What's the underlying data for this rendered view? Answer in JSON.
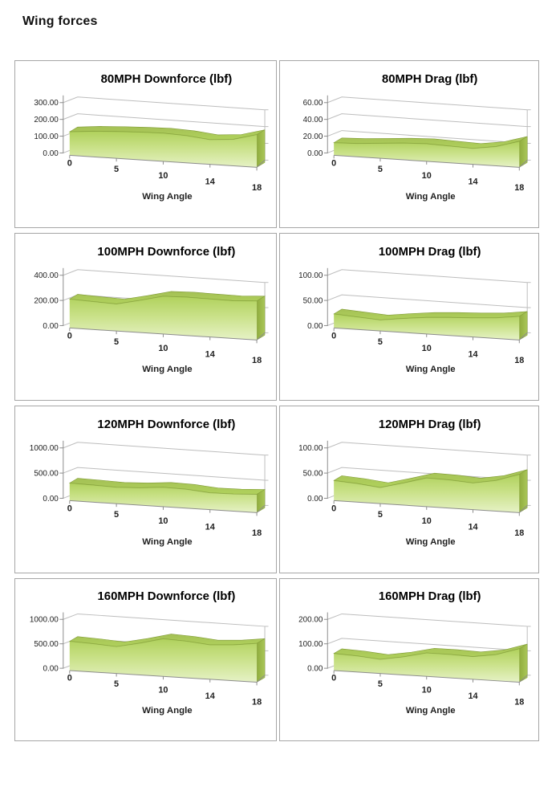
{
  "page": {
    "title": "Wing forces"
  },
  "colors": {
    "area_grad_top": "#b0d15c",
    "area_grad_mid": "#c9e188",
    "area_grad_bottom": "#e6f2c6",
    "ribbon": "#a4c055",
    "ribbon_edge": "#7f9a36",
    "side_front": "#90ac3e",
    "side_back": "#aac759",
    "gridline": "#bdbdbd",
    "axis": "#8c8c8c",
    "box_border": "#a6a6a6",
    "tick_text": "#1f1f1f",
    "title_text": "#000000"
  },
  "chart_data": [
    {
      "type": "area",
      "title": "80MPH Downforce (lbf)",
      "xlabel": "Wing Angle",
      "x": [
        0,
        2,
        5,
        7,
        10,
        12,
        14,
        16,
        18
      ],
      "x_tick_labels": [
        "0",
        "5",
        "10",
        "14",
        "18"
      ],
      "values": [
        140,
        153,
        160,
        165,
        168,
        162,
        147,
        158,
        195
      ],
      "ylim": [
        0,
        300
      ],
      "y_ticks": [
        "0.00",
        "100.00",
        "200.00",
        "300.00"
      ]
    },
    {
      "type": "area",
      "title": "80MPH Drag (lbf)",
      "xlabel": "Wing Angle",
      "x": [
        0,
        2,
        5,
        7,
        10,
        12,
        14,
        16,
        18
      ],
      "x_tick_labels": [
        "0",
        "5",
        "10",
        "14",
        "18"
      ],
      "values": [
        15,
        16,
        18,
        20,
        21,
        20,
        19,
        23,
        31
      ],
      "ylim": [
        0,
        60
      ],
      "y_ticks": [
        "0.00",
        "20.00",
        "40.00",
        "60.00"
      ]
    },
    {
      "type": "area",
      "title": "100MPH Downforce (lbf)",
      "xlabel": "Wing Angle",
      "x": [
        0,
        2,
        5,
        7,
        10,
        12,
        14,
        16,
        18
      ],
      "x_tick_labels": [
        "0",
        "5",
        "10",
        "14",
        "18"
      ],
      "values": [
        230,
        222,
        215,
        255,
        300,
        305,
        302,
        300,
        310
      ],
      "ylim": [
        0,
        400
      ],
      "y_ticks": [
        "0.00",
        "200.00",
        "400.00"
      ]
    },
    {
      "type": "area",
      "title": "100MPH Drag (lbf)",
      "xlabel": "Wing Angle",
      "x": [
        0,
        2,
        5,
        7,
        10,
        12,
        14,
        16,
        18
      ],
      "x_tick_labels": [
        "0",
        "5",
        "10",
        "14",
        "18"
      ],
      "values": [
        28,
        25,
        22,
        28,
        33,
        36,
        38,
        41,
        47
      ],
      "ylim": [
        0,
        100
      ],
      "y_ticks": [
        "0.00",
        "50.00",
        "100.00"
      ]
    },
    {
      "type": "area",
      "title": "120MPH Downforce (lbf)",
      "xlabel": "Wing Angle",
      "x": [
        0,
        2,
        5,
        7,
        10,
        12,
        14,
        16,
        18
      ],
      "x_tick_labels": [
        "0",
        "5",
        "10",
        "14",
        "18"
      ],
      "values": [
        350,
        340,
        325,
        345,
        385,
        375,
        335,
        340,
        365
      ],
      "ylim": [
        0,
        1000
      ],
      "y_ticks": [
        "0.00",
        "500.00",
        "1000.00"
      ]
    },
    {
      "type": "area",
      "title": "120MPH Drag (lbf)",
      "xlabel": "Wing Angle",
      "x": [
        0,
        2,
        5,
        7,
        10,
        12,
        14,
        16,
        18
      ],
      "x_tick_labels": [
        "0",
        "5",
        "10",
        "14",
        "18"
      ],
      "values": [
        40,
        37,
        32,
        44,
        57,
        56,
        53,
        61,
        76
      ],
      "ylim": [
        0,
        100
      ],
      "y_ticks": [
        "0.00",
        "50.00",
        "100.00"
      ]
    },
    {
      "type": "area",
      "title": "160MPH Downforce (lbf)",
      "xlabel": "Wing Angle",
      "x": [
        0,
        2,
        5,
        7,
        10,
        12,
        14,
        16,
        18
      ],
      "x_tick_labels": [
        "0",
        "5",
        "10",
        "14",
        "18"
      ],
      "values": [
        600,
        580,
        550,
        650,
        770,
        750,
        705,
        735,
        795
      ],
      "ylim": [
        0,
        1000
      ],
      "y_ticks": [
        "0.00",
        "500.00",
        "1000.00"
      ]
    },
    {
      "type": "area",
      "title": "160MPH Drag (lbf)",
      "xlabel": "Wing Angle",
      "x": [
        0,
        2,
        5,
        7,
        10,
        12,
        14,
        16,
        18
      ],
      "x_tick_labels": [
        "0",
        "5",
        "10",
        "14",
        "18"
      ],
      "values": [
        70,
        66,
        58,
        74,
        96,
        96,
        93,
        107,
        137
      ],
      "ylim": [
        0,
        200
      ],
      "y_ticks": [
        "0.00",
        "100.00",
        "200.00"
      ]
    }
  ]
}
